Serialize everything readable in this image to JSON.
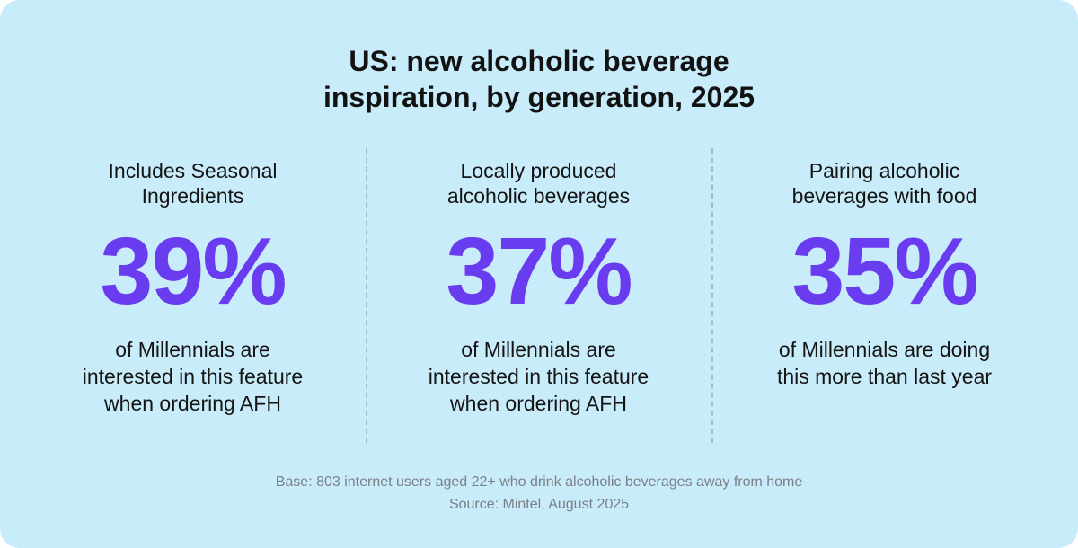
{
  "title": [
    "US: new alcoholic beverage",
    "inspiration, by generation, 2025"
  ],
  "stats": [
    {
      "heading": [
        "Includes Seasonal",
        "Ingredients"
      ],
      "value": "39%",
      "description": [
        "of Millennials are",
        "interested in this feature",
        "when ordering AFH"
      ]
    },
    {
      "heading": [
        "Locally produced",
        "alcoholic beverages"
      ],
      "value": "37%",
      "description": [
        "of Millennials are",
        "interested in this feature",
        "when ordering AFH"
      ]
    },
    {
      "heading": [
        "Pairing alcoholic",
        "beverages with food"
      ],
      "value": "35%",
      "description": [
        "of Millennials are doing",
        "this more than last year"
      ]
    }
  ],
  "footnote": [
    "Base: 803 internet users aged 22+ who drink alcoholic beverages away from home",
    "Source: Mintel, August 2025"
  ]
}
